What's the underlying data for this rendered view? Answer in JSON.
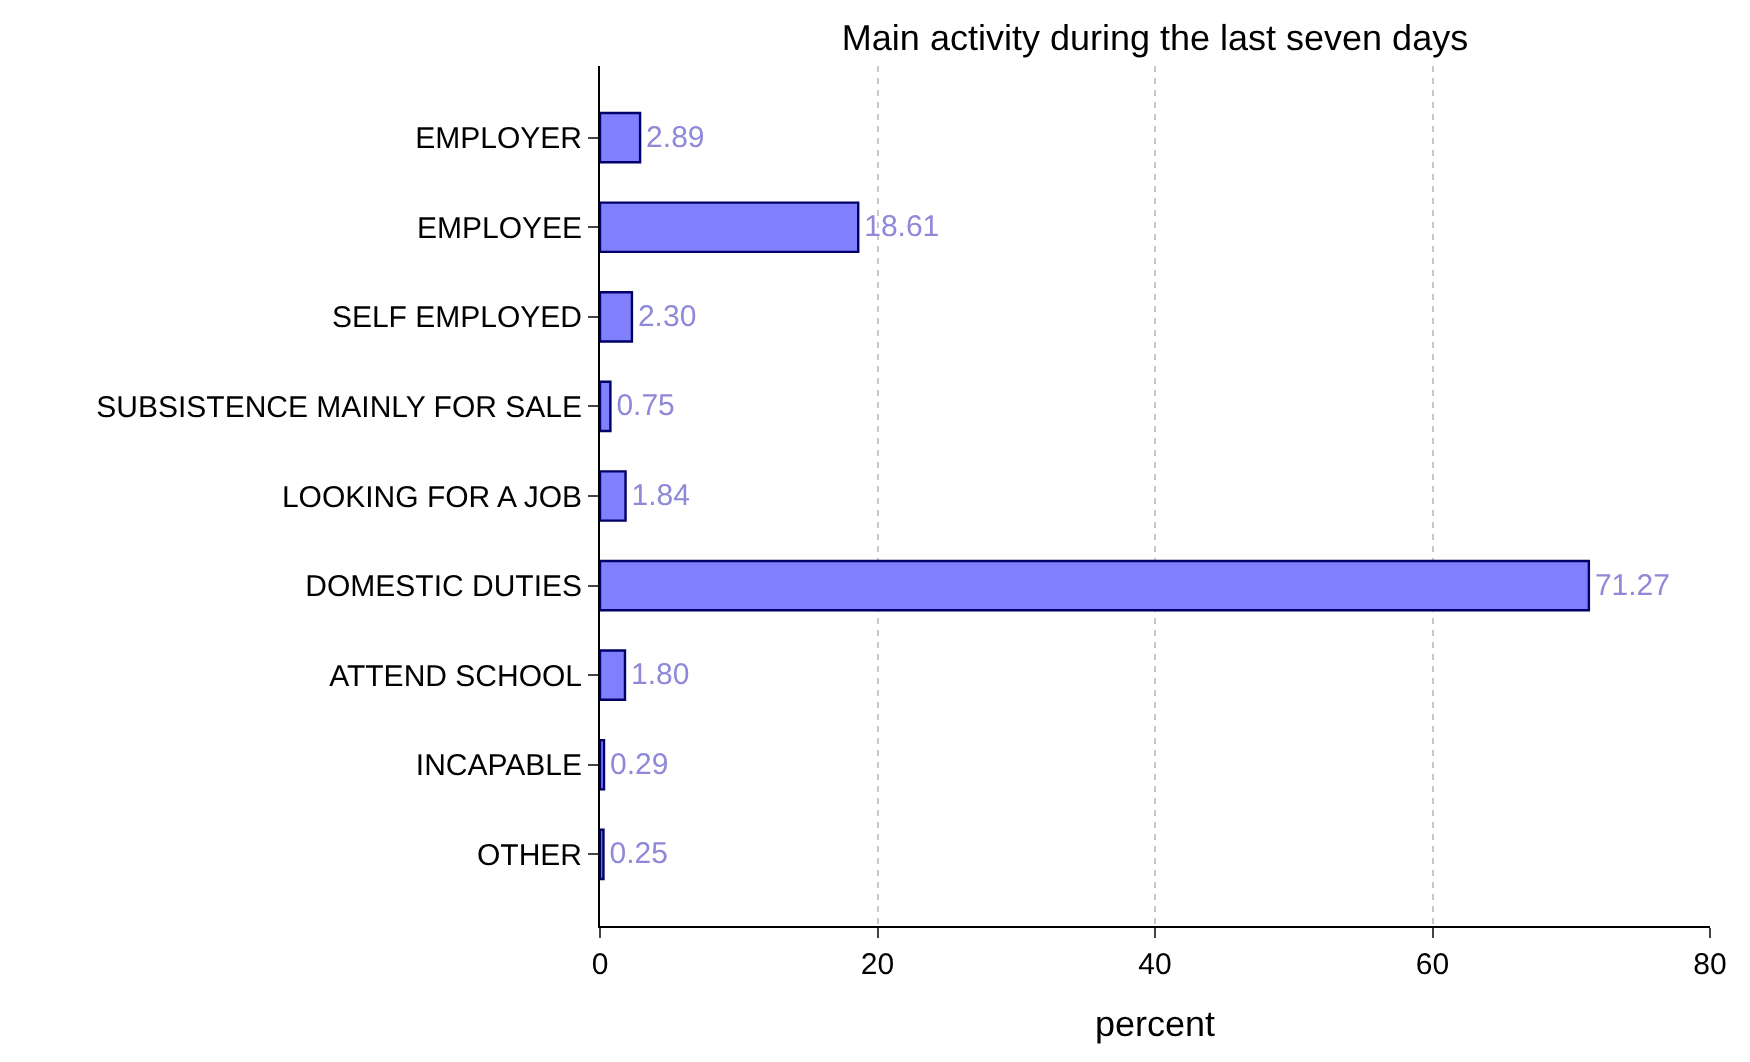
{
  "chart_data": {
    "type": "bar",
    "orientation": "horizontal",
    "title": "Main activity during the last seven days",
    "xlabel": "percent",
    "categories": [
      "EMPLOYER",
      "EMPLOYEE",
      "SELF EMPLOYED",
      "SUBSISTENCE MAINLY FOR SALE",
      "LOOKING FOR A JOB",
      "DOMESTIC DUTIES",
      "ATTEND SCHOOL",
      "INCAPABLE",
      "OTHER"
    ],
    "values": [
      2.89,
      18.61,
      2.3,
      0.75,
      1.84,
      71.27,
      1.8,
      0.29,
      0.25
    ],
    "value_labels": [
      "2.89",
      "18.61",
      "2.30",
      "0.75",
      "1.84",
      "71.27",
      "1.80",
      "0.29",
      "0.25"
    ],
    "color": "#8080ff",
    "xlim": [
      0,
      80
    ],
    "xticks": [
      0,
      20,
      40,
      60,
      80
    ],
    "grid": "x",
    "legend": false
  }
}
